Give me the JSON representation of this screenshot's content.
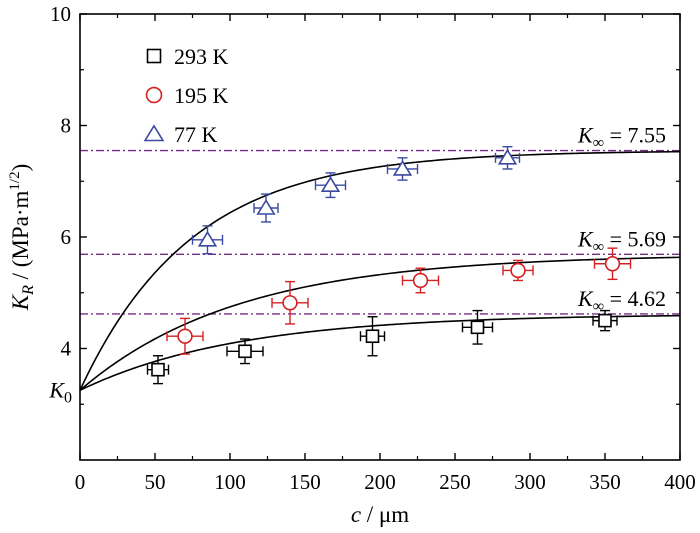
{
  "chart_data": {
    "type": "scatter",
    "xlabel": "c / μm",
    "ylabel": "K_R / (MPa·m^1/2)",
    "xlim": [
      0,
      400
    ],
    "ylim": [
      2.0,
      10.0
    ],
    "x_ticks": [
      0,
      50,
      100,
      150,
      200,
      250,
      300,
      350,
      400
    ],
    "y_ticks": [
      4,
      6,
      8,
      10
    ],
    "grid": false,
    "legend_position": "top-left",
    "k0_label": "K0",
    "k0_value": 3.25,
    "series": [
      {
        "name": "293 K",
        "marker": "square",
        "color": "#000000",
        "points": [
          {
            "x": 52,
            "y": 3.62,
            "xerr": 7,
            "yerr": 0.25
          },
          {
            "x": 110,
            "y": 3.95,
            "xerr": 12,
            "yerr": 0.22
          },
          {
            "x": 195,
            "y": 4.22,
            "xerr": 8,
            "yerr": 0.35
          },
          {
            "x": 265,
            "y": 4.38,
            "xerr": 10,
            "yerr": 0.3
          },
          {
            "x": 350,
            "y": 4.5,
            "xerr": 8,
            "yerr": 0.18
          }
        ],
        "fit_asymptote": 4.62,
        "fit_rate": 0.0095
      },
      {
        "name": "195 K",
        "marker": "circle",
        "color": "#d42020",
        "points": [
          {
            "x": 70,
            "y": 4.22,
            "xerr": 12,
            "yerr": 0.32
          },
          {
            "x": 140,
            "y": 4.82,
            "xerr": 12,
            "yerr": 0.38
          },
          {
            "x": 227,
            "y": 5.22,
            "xerr": 12,
            "yerr": 0.22
          },
          {
            "x": 292,
            "y": 5.4,
            "xerr": 10,
            "yerr": 0.18
          },
          {
            "x": 355,
            "y": 5.52,
            "xerr": 12,
            "yerr": 0.28
          }
        ],
        "fit_asymptote": 5.69,
        "fit_rate": 0.0095
      },
      {
        "name": "77 K",
        "marker": "triangle",
        "color": "#3a4aa0",
        "points": [
          {
            "x": 85,
            "y": 5.95,
            "xerr": 10,
            "yerr": 0.25
          },
          {
            "x": 124,
            "y": 6.52,
            "xerr": 8,
            "yerr": 0.25
          },
          {
            "x": 167,
            "y": 6.93,
            "xerr": 10,
            "yerr": 0.22
          },
          {
            "x": 215,
            "y": 7.22,
            "xerr": 10,
            "yerr": 0.2
          },
          {
            "x": 285,
            "y": 7.42,
            "xerr": 8,
            "yerr": 0.2
          }
        ],
        "fit_asymptote": 7.55,
        "fit_rate": 0.0135
      }
    ],
    "asymptotes": [
      {
        "value": 7.55,
        "label": "K∞ = 7.55",
        "color": "#7a2a8a"
      },
      {
        "value": 5.69,
        "label": "K∞ = 5.69",
        "color": "#7a2a8a"
      },
      {
        "value": 4.62,
        "label": "K∞ = 4.62",
        "color": "#7a2a8a"
      }
    ]
  }
}
